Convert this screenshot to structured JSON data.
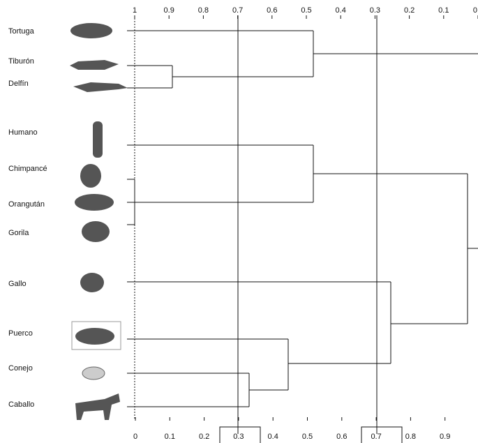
{
  "labels": [
    "Tortuga",
    "Tiburón",
    "Delfín",
    "Humano",
    "Chimpancé",
    "Orangután",
    "Gorila",
    "Gallo",
    "Puerco",
    "Conejo",
    "Caballo"
  ],
  "top_axis": {
    "ticks": [
      "1",
      "0.9",
      "0.8",
      "0.7",
      "0.6",
      "0.5",
      "0.4",
      "0.3",
      "0.2",
      "0.1",
      "0"
    ]
  },
  "bottom_axis": {
    "ticks": [
      "0",
      "0.1",
      "0.2",
      "0.3",
      "0.4",
      "0.5",
      "0.6",
      "0.7",
      "0.8",
      "0.9"
    ]
  }
}
